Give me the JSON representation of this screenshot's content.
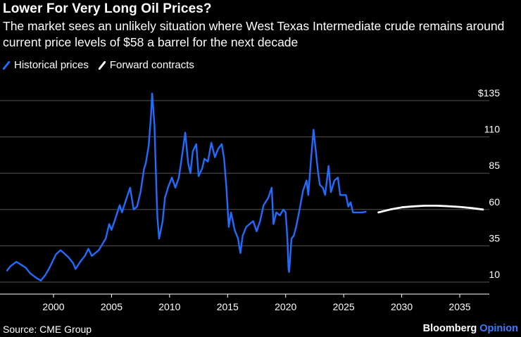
{
  "title": "Lower For Very Long Oil Prices?",
  "subtitle": "The market sees an unlikely situation where West Texas Intermediate crude remains around current price levels of $58 a barrel for the next decade",
  "source": "Source: CME Group",
  "brand": {
    "name": "Bloomberg",
    "suffix": "Opinion"
  },
  "colors": {
    "background": "#000000",
    "historical": "#1f6cff",
    "forward": "#ffffff",
    "grid": "#555555",
    "opinion": "#3b7bff"
  },
  "chart_data": {
    "type": "line",
    "x_range": [
      1995.8,
      2038.0
    ],
    "xticks": [
      2000,
      2005,
      2010,
      2015,
      2020,
      2025,
      2030,
      2035
    ],
    "yticks": [
      10,
      35,
      60,
      85,
      110,
      135
    ],
    "ytick_labels": [
      "10",
      "35",
      "60",
      "85",
      "110",
      "$135"
    ],
    "ylim": [
      5,
      142
    ],
    "grid": "horizontal",
    "legend_position": "top-left",
    "series": [
      {
        "name": "Historical prices",
        "color": "#1f6cff",
        "points": [
          [
            1996.0,
            18
          ],
          [
            1996.3,
            21
          ],
          [
            1996.8,
            24
          ],
          [
            1997.2,
            22
          ],
          [
            1997.6,
            20
          ],
          [
            1998.0,
            16
          ],
          [
            1998.5,
            13
          ],
          [
            1998.9,
            11
          ],
          [
            1999.3,
            15
          ],
          [
            1999.6,
            19
          ],
          [
            1999.9,
            24
          ],
          [
            2000.2,
            29
          ],
          [
            2000.6,
            32
          ],
          [
            2000.9,
            30
          ],
          [
            2001.3,
            27
          ],
          [
            2001.7,
            23
          ],
          [
            2001.9,
            19
          ],
          [
            2002.3,
            24
          ],
          [
            2002.7,
            28
          ],
          [
            2003.0,
            33
          ],
          [
            2003.3,
            28
          ],
          [
            2003.6,
            30
          ],
          [
            2003.9,
            32
          ],
          [
            2004.2,
            36
          ],
          [
            2004.5,
            40
          ],
          [
            2004.8,
            50
          ],
          [
            2005.0,
            46
          ],
          [
            2005.3,
            53
          ],
          [
            2005.7,
            63
          ],
          [
            2005.9,
            58
          ],
          [
            2006.3,
            68
          ],
          [
            2006.6,
            75
          ],
          [
            2006.9,
            60
          ],
          [
            2007.2,
            62
          ],
          [
            2007.5,
            72
          ],
          [
            2007.8,
            88
          ],
          [
            2007.95,
            92
          ],
          [
            2008.2,
            104
          ],
          [
            2008.4,
            125
          ],
          [
            2008.5,
            140
          ],
          [
            2008.7,
            118
          ],
          [
            2008.8,
            90
          ],
          [
            2008.95,
            55
          ],
          [
            2009.1,
            40
          ],
          [
            2009.4,
            52
          ],
          [
            2009.6,
            68
          ],
          [
            2009.9,
            76
          ],
          [
            2010.2,
            82
          ],
          [
            2010.5,
            75
          ],
          [
            2010.8,
            82
          ],
          [
            2010.95,
            90
          ],
          [
            2011.2,
            104
          ],
          [
            2011.35,
            113
          ],
          [
            2011.6,
            92
          ],
          [
            2011.8,
            85
          ],
          [
            2012.0,
            100
          ],
          [
            2012.3,
            105
          ],
          [
            2012.5,
            83
          ],
          [
            2012.8,
            88
          ],
          [
            2013.0,
            95
          ],
          [
            2013.3,
            93
          ],
          [
            2013.6,
            106
          ],
          [
            2013.9,
            96
          ],
          [
            2014.2,
            102
          ],
          [
            2014.5,
            105
          ],
          [
            2014.7,
            95
          ],
          [
            2014.9,
            75
          ],
          [
            2015.1,
            48
          ],
          [
            2015.3,
            58
          ],
          [
            2015.6,
            46
          ],
          [
            2015.9,
            40
          ],
          [
            2016.1,
            30
          ],
          [
            2016.3,
            42
          ],
          [
            2016.6,
            48
          ],
          [
            2016.9,
            50
          ],
          [
            2017.2,
            52
          ],
          [
            2017.5,
            45
          ],
          [
            2017.8,
            52
          ],
          [
            2018.1,
            63
          ],
          [
            2018.5,
            68
          ],
          [
            2018.8,
            75
          ],
          [
            2018.95,
            50
          ],
          [
            2019.2,
            58
          ],
          [
            2019.5,
            56
          ],
          [
            2019.8,
            60
          ],
          [
            2020.0,
            58
          ],
          [
            2020.15,
            40
          ],
          [
            2020.25,
            19
          ],
          [
            2020.3,
            17
          ],
          [
            2020.5,
            40
          ],
          [
            2020.7,
            42
          ],
          [
            2020.9,
            48
          ],
          [
            2021.2,
            60
          ],
          [
            2021.5,
            73
          ],
          [
            2021.8,
            80
          ],
          [
            2021.95,
            70
          ],
          [
            2022.2,
            96
          ],
          [
            2022.4,
            115
          ],
          [
            2022.6,
            100
          ],
          [
            2022.8,
            85
          ],
          [
            2022.95,
            77
          ],
          [
            2023.2,
            75
          ],
          [
            2023.4,
            70
          ],
          [
            2023.7,
            90
          ],
          [
            2023.9,
            72
          ],
          [
            2024.2,
            80
          ],
          [
            2024.5,
            82
          ],
          [
            2024.7,
            70
          ],
          [
            2024.95,
            70
          ],
          [
            2025.2,
            70
          ],
          [
            2025.4,
            62
          ],
          [
            2025.6,
            65
          ],
          [
            2025.8,
            58
          ],
          [
            2026.1,
            58
          ],
          [
            2026.6,
            58
          ],
          [
            2026.9,
            58.5
          ]
        ]
      },
      {
        "name": "Forward contracts",
        "color": "#ffffff",
        "points": [
          [
            2028.0,
            58
          ],
          [
            2029.0,
            60
          ],
          [
            2030.0,
            61.5
          ],
          [
            2031.0,
            62.2
          ],
          [
            2032.0,
            62.6
          ],
          [
            2033.0,
            62.6
          ],
          [
            2034.0,
            62.3
          ],
          [
            2035.0,
            61.8
          ],
          [
            2036.0,
            61
          ],
          [
            2037.0,
            60
          ]
        ]
      }
    ]
  }
}
